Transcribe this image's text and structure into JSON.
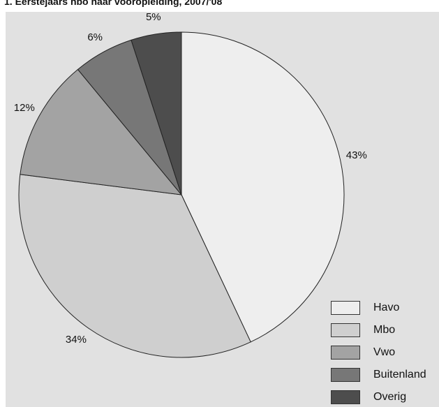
{
  "chart_data": {
    "type": "pie",
    "title": "1.  Eerstejaars hbo naar vooropleiding, 2007/'08",
    "slices": [
      {
        "label": "Havo",
        "value": 43,
        "display": "43%",
        "color": "#eeeeee"
      },
      {
        "label": "Mbo",
        "value": 34,
        "display": "34%",
        "color": "#cfcfcf"
      },
      {
        "label": "Vwo",
        "value": 12,
        "display": "12%",
        "color": "#a3a3a3"
      },
      {
        "label": "Buitenland",
        "value": 6,
        "display": "6%",
        "color": "#777777"
      },
      {
        "label": "Overig",
        "value": 5,
        "display": "5%",
        "color": "#4d4d4d"
      }
    ],
    "legend_position": "bottom-right",
    "start_angle": "top, clockwise"
  }
}
